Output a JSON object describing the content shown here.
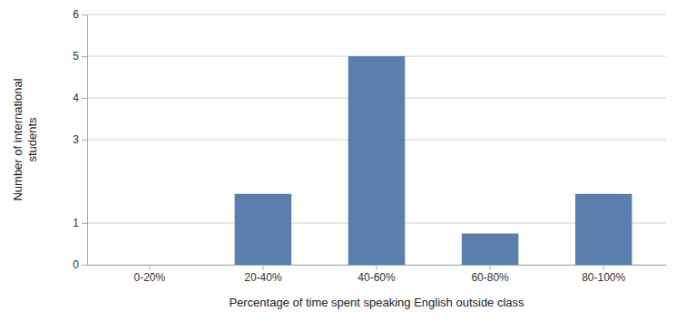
{
  "chart_data": {
    "type": "bar",
    "categories": [
      "0-20%",
      "20-40%",
      "40-60%",
      "60-80%",
      "80-100%"
    ],
    "values": [
      0,
      1.7,
      5,
      0.75,
      1.7
    ],
    "color": "#5b7fad",
    "xlabel": "Percentage of time spent speaking English outside class",
    "ylabel": "Number of international\nstudents",
    "ylim": [
      0,
      6
    ],
    "yticks": [
      0,
      1,
      3,
      4,
      5,
      6
    ],
    "grid": true
  }
}
